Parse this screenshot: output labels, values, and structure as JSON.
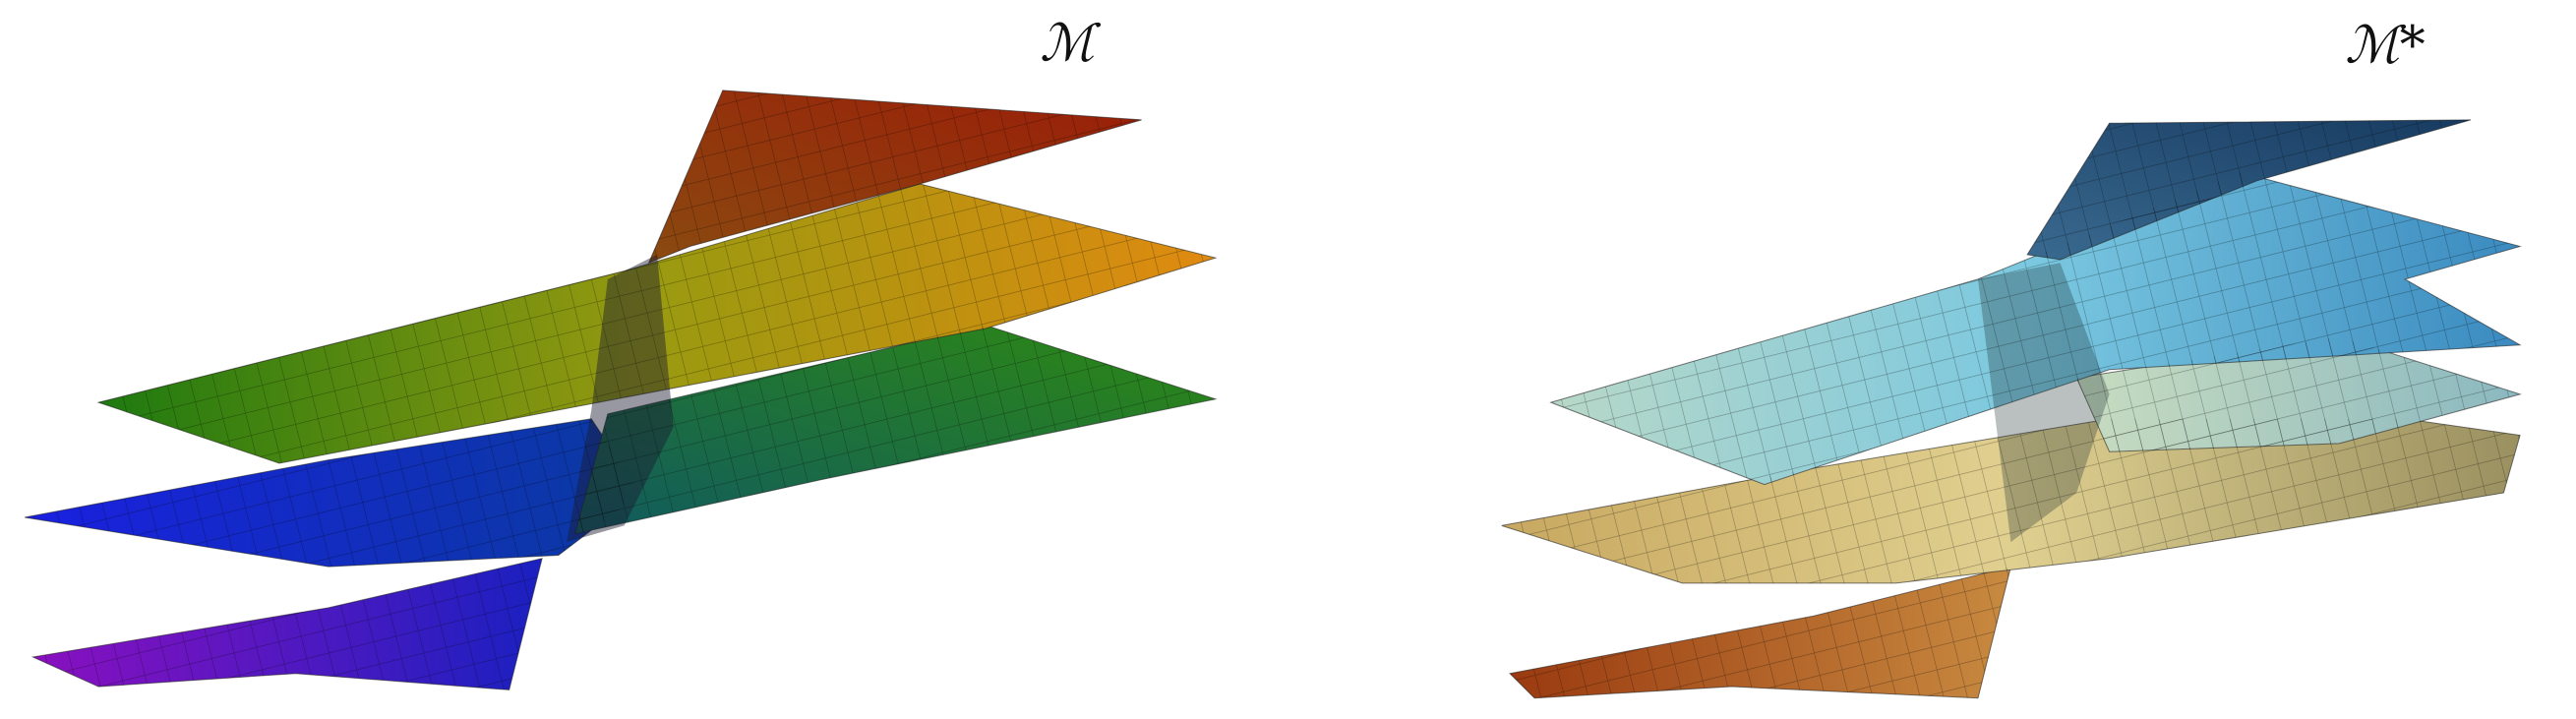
{
  "panels": [
    {
      "label": "ℳ"
    },
    {
      "label": "ℳ*"
    }
  ]
}
